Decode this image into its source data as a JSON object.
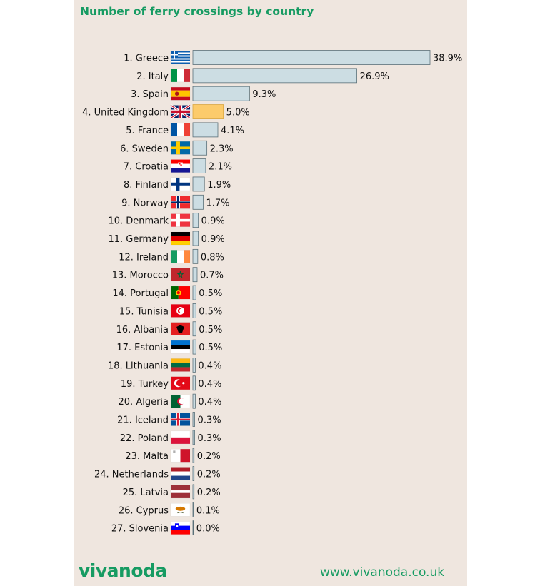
{
  "chart_data": {
    "type": "bar",
    "orientation": "horizontal",
    "title": "Number of ferry crossings by country",
    "categories": [
      "1. Greece",
      "2. Italy",
      "3. Spain",
      "4. United Kingdom",
      "5. France",
      "6. Sweden",
      "7. Croatia",
      "8. Finland",
      "9. Norway",
      "10. Denmark",
      "11. Germany",
      "12. Ireland",
      "13. Morocco",
      "14. Portugal",
      "15. Tunisia",
      "16. Albania",
      "17. Estonia",
      "18. Lithuania",
      "19. Turkey",
      "20. Algeria",
      "21. Iceland",
      "22. Poland",
      "23. Malta",
      "24. Netherlands",
      "25. Latvia",
      "26. Cyprus",
      "27. Slovenia"
    ],
    "values": [
      38.9,
      26.9,
      9.3,
      5.0,
      4.1,
      2.3,
      2.1,
      1.9,
      1.7,
      0.9,
      0.9,
      0.8,
      0.7,
      0.5,
      0.5,
      0.5,
      0.5,
      0.4,
      0.4,
      0.4,
      0.3,
      0.3,
      0.2,
      0.2,
      0.2,
      0.1,
      0.0
    ],
    "value_labels": [
      "38.9%",
      "26.9%",
      "9.3%",
      "5.0%",
      "4.1%",
      "2.3%",
      "2.1%",
      "1.9%",
      "1.7%",
      "0.9%",
      "0.9%",
      "0.8%",
      "0.7%",
      "0.5%",
      "0.5%",
      "0.5%",
      "0.5%",
      "0.4%",
      "0.4%",
      "0.4%",
      "0.3%",
      "0.3%",
      "0.2%",
      "0.2%",
      "0.2%",
      "0.1%",
      "0.0%"
    ],
    "flags": [
      "greece-flag",
      "italy-flag",
      "spain-flag",
      "united-kingdom-flag",
      "france-flag",
      "sweden-flag",
      "croatia-flag",
      "finland-flag",
      "norway-flag",
      "denmark-flag",
      "germany-flag",
      "ireland-flag",
      "morocco-flag",
      "portugal-flag",
      "tunisia-flag",
      "albania-flag",
      "estonia-flag",
      "lithuania-flag",
      "turkey-flag",
      "algeria-flag",
      "iceland-flag",
      "poland-flag",
      "malta-flag",
      "netherlands-flag",
      "latvia-flag",
      "cyprus-flag",
      "slovenia-flag"
    ],
    "highlighted": "4. United Kingdom",
    "xlim": [
      0,
      38.9
    ],
    "grid": false,
    "colors": {
      "bar": "#ccdde3",
      "bar_border": "#5a7078",
      "highlight": "#fccb6b",
      "highlight_border": "#d9a640",
      "accent": "#169b62",
      "background": "#efe6df"
    }
  },
  "footer": {
    "logo": "vivanoda",
    "website": "www.vivanoda.co.uk"
  }
}
